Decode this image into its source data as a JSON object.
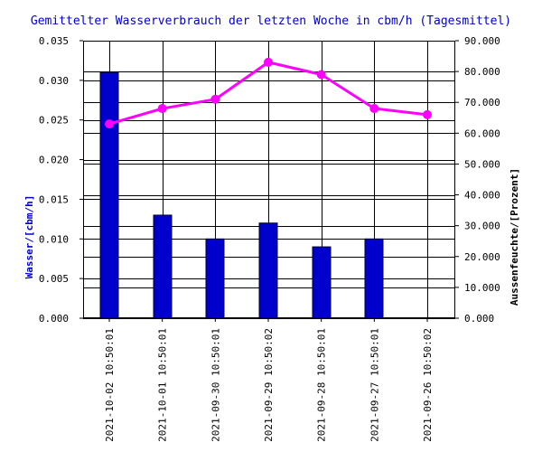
{
  "chart_data": {
    "type": "bar",
    "title": "Gemittelter Wasserverbrauch der letzten Woche in cbm/h (Tagesmittel)",
    "ylabel": "Wasser/[cbm/h]",
    "y2label": "Aussenfeuchte/[Prozent]",
    "categories": [
      "2021-10-02 10:50:01",
      "2021-10-01 10:50:01",
      "2021-09-30 10:50:01",
      "2021-09-29 10:50:02",
      "2021-09-28 10:50:01",
      "2021-09-27 10:50:01",
      "2021-09-26 10:50:02"
    ],
    "ylim": [
      0,
      0.035
    ],
    "y2lim": [
      0,
      90
    ],
    "yticks": [
      "0.000",
      "0.005",
      "0.010",
      "0.015",
      "0.020",
      "0.025",
      "0.030",
      "0.035"
    ],
    "y2ticks": [
      "0.000",
      "10.000",
      "20.000",
      "30.000",
      "40.000",
      "50.000",
      "60.000",
      "70.000",
      "80.000",
      "90.000"
    ],
    "series": [
      {
        "axis": "left",
        "kind": "bar",
        "color": "#0000cc",
        "values": [
          0.031,
          0.013,
          0.01,
          0.012,
          0.009,
          0.01,
          0
        ]
      },
      {
        "axis": "right",
        "kind": "line",
        "color": "#ff00ff",
        "values": [
          63,
          68,
          71,
          83,
          79,
          68,
          66
        ]
      }
    ],
    "grid": true,
    "colors": {
      "title": "#0000cc",
      "ylabel": "#0000cc",
      "y2label": "#000000",
      "grid": "#000000",
      "background": "#ffffff"
    }
  }
}
